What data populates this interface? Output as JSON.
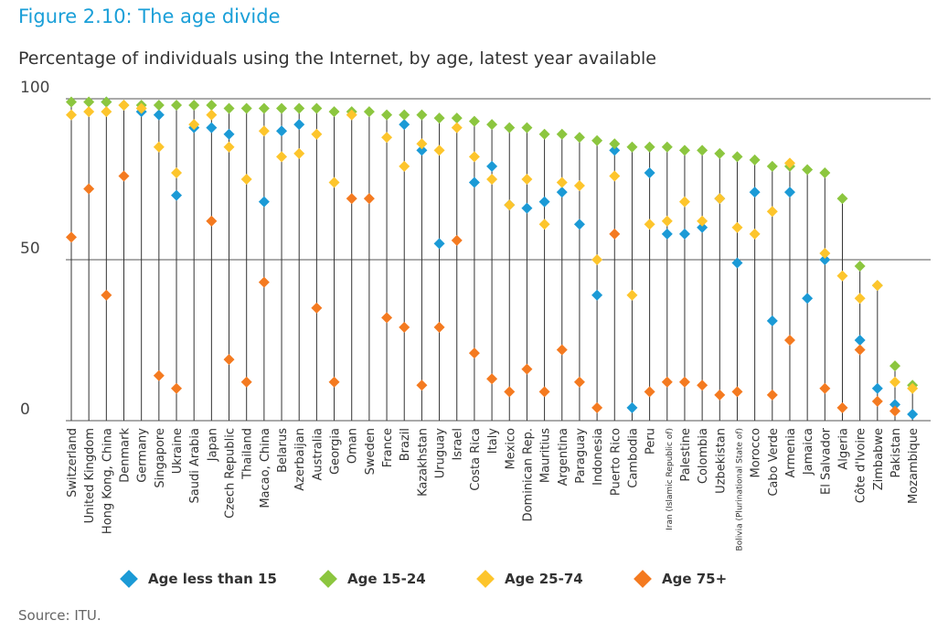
{
  "figure_title": "Figure 2.10: The age divide",
  "subtitle": "Percentage of individuals using the Internet, by age, latest year available",
  "source": "Source: ITU.",
  "colors": {
    "age_lt15": "#1b9ad6",
    "age_15_24": "#8cc63f",
    "age_25_74": "#fdc52c",
    "age_75p": "#f47a20",
    "stem": "#333333",
    "grid": "#555555"
  },
  "chart_data": {
    "type": "scatter",
    "title": "Percentage of individuals using the Internet, by age, latest year available",
    "xlabel": "",
    "ylabel": "",
    "ylim": [
      0,
      100
    ],
    "yticks": [
      0,
      50,
      100
    ],
    "grid": true,
    "legend_position": "bottom",
    "categories": [
      "Switzerland",
      "United Kingdom",
      "Hong Kong, China",
      "Denmark",
      "Germany",
      "Singapore",
      "Ukraine",
      "Saudi Arabia",
      "Japan",
      "Czech Republic",
      "Thailand",
      "Macao, China",
      "Belarus",
      "Azerbaijan",
      "Australia",
      "Georgia",
      "Oman",
      "Sweden",
      "France",
      "Brazil",
      "Kazakhstan",
      "Uruguay",
      "Israel",
      "Costa Rica",
      "Italy",
      "Mexico",
      "Dominican Rep.",
      "Mauritius",
      "Argentina",
      "Paraguay",
      "Indonesia",
      "Puerto Rico",
      "Cambodia",
      "Peru",
      "Iran (Islamic Republic of)",
      "Palestine",
      "Colombia",
      "Uzbekistan",
      "Bolivia (Plurinational State of)",
      "Morocco",
      "Cabo Verde",
      "Armenia",
      "Jamaica",
      "El Salvador",
      "Algeria",
      "Côte d'Ivoire",
      "Zimbabwe",
      "Pakistan",
      "Mozambique"
    ],
    "series": [
      {
        "name": "Age less than 15",
        "values": [
          null,
          null,
          99,
          null,
          96,
          95,
          70,
          91,
          91,
          89,
          null,
          68,
          90,
          92,
          null,
          null,
          null,
          null,
          null,
          92,
          84,
          55,
          null,
          74,
          79,
          67,
          66,
          68,
          71,
          61,
          39,
          84,
          4,
          77,
          58,
          58,
          60,
          69,
          49,
          71,
          31,
          71,
          38,
          50,
          null,
          25,
          10,
          5,
          2
        ]
      },
      {
        "name": "Age 15-24",
        "values": [
          99,
          99,
          99,
          98,
          98,
          98,
          98,
          98,
          98,
          97,
          97,
          97,
          97,
          97,
          97,
          96,
          96,
          96,
          95,
          95,
          95,
          94,
          94,
          93,
          92,
          91,
          91,
          89,
          89,
          88,
          87,
          86,
          85,
          85,
          85,
          84,
          84,
          83,
          82,
          81,
          79,
          79,
          78,
          77,
          69,
          48,
          42,
          17,
          11
        ]
      },
      {
        "name": "Age 25-74",
        "values": [
          95,
          96,
          96,
          98,
          97,
          85,
          77,
          92,
          95,
          85,
          75,
          90,
          82,
          83,
          89,
          74,
          95,
          null,
          88,
          79,
          86,
          84,
          91,
          82,
          75,
          67,
          75,
          61,
          74,
          73,
          50,
          76,
          39,
          61,
          62,
          68,
          62,
          69,
          60,
          58,
          65,
          80,
          null,
          52,
          45,
          38,
          42,
          12,
          10
        ]
      },
      {
        "name": "Age 75+",
        "values": [
          57,
          72,
          39,
          76,
          null,
          14,
          10,
          null,
          62,
          19,
          12,
          43,
          null,
          null,
          35,
          12,
          69,
          69,
          32,
          29,
          11,
          29,
          56,
          21,
          13,
          9,
          16,
          9,
          22,
          12,
          4,
          58,
          null,
          9,
          12,
          12,
          11,
          8,
          9,
          null,
          8,
          25,
          null,
          10,
          4,
          22,
          6,
          3,
          null
        ]
      }
    ]
  },
  "legend": [
    {
      "label": "Age less than 15",
      "color": "#1b9ad6"
    },
    {
      "label": "Age 15-24",
      "color": "#8cc63f"
    },
    {
      "label": "Age 25-74",
      "color": "#fdc52c"
    },
    {
      "label": "Age 75+",
      "color": "#f47a20"
    }
  ]
}
